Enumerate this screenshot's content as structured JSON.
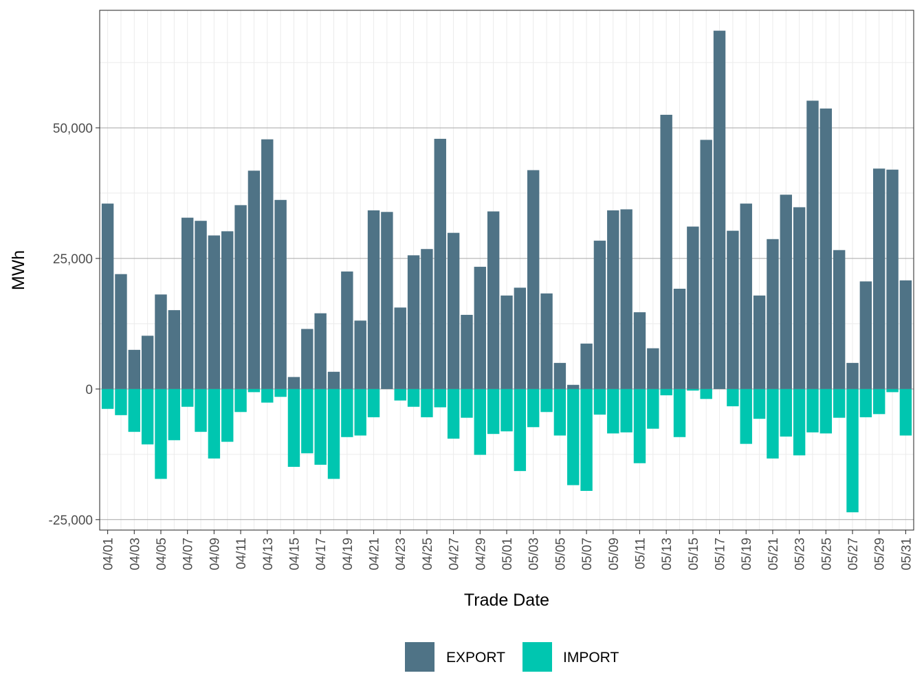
{
  "colors": {
    "export": "#4F7386",
    "import": "#00C6B0",
    "grid_major": "#a6a6a6",
    "grid_minor": "#ebebeb",
    "panel_border": "#333333"
  },
  "chart_data": {
    "type": "bar",
    "xlabel": "Trade Date",
    "ylabel": "MWh",
    "ylim": [
      -27000,
      72500
    ],
    "y_ticks": [
      -25000,
      0,
      25000,
      50000
    ],
    "y_tick_labels": [
      "-25,000",
      "0",
      "25,000",
      "50,000"
    ],
    "legend": {
      "position": "bottom",
      "entries": [
        "EXPORT",
        "IMPORT"
      ]
    },
    "grid": true,
    "categories": [
      "04/01",
      "04/02",
      "04/03",
      "04/04",
      "04/05",
      "04/06",
      "04/07",
      "04/08",
      "04/09",
      "04/10",
      "04/11",
      "04/12",
      "04/13",
      "04/14",
      "04/15",
      "04/16",
      "04/17",
      "04/18",
      "04/19",
      "04/20",
      "04/21",
      "04/22",
      "04/23",
      "04/24",
      "04/25",
      "04/26",
      "04/27",
      "04/28",
      "04/29",
      "04/30",
      "05/01",
      "05/02",
      "05/03",
      "05/04",
      "05/05",
      "05/06",
      "05/07",
      "05/08",
      "05/09",
      "05/10",
      "05/11",
      "05/12",
      "05/13",
      "05/14",
      "05/15",
      "05/16",
      "05/17",
      "05/18",
      "05/19",
      "05/20",
      "05/21",
      "05/22",
      "05/23",
      "05/24",
      "05/25",
      "05/26",
      "05/27",
      "05/28",
      "05/29",
      "05/30",
      "05/31"
    ],
    "x_tick_labels": [
      "04/01",
      "04/03",
      "04/05",
      "04/07",
      "04/09",
      "04/11",
      "04/13",
      "04/15",
      "04/17",
      "04/19",
      "04/21",
      "04/23",
      "04/25",
      "04/27",
      "04/29",
      "05/01",
      "05/03",
      "05/05",
      "05/07",
      "05/09",
      "05/11",
      "05/13",
      "05/15",
      "05/17",
      "05/19",
      "05/21",
      "05/23",
      "05/25",
      "05/27",
      "05/29",
      "05/31"
    ],
    "series": [
      {
        "name": "EXPORT",
        "values": [
          35500,
          22000,
          7500,
          10200,
          18100,
          15100,
          32800,
          32200,
          29400,
          30200,
          35200,
          41800,
          47800,
          36200,
          2300,
          11500,
          14500,
          3300,
          22500,
          13100,
          34200,
          33900,
          15600,
          25600,
          26800,
          47900,
          29900,
          14200,
          23400,
          34000,
          17900,
          19400,
          41900,
          18300,
          5000,
          800,
          8700,
          28400,
          34200,
          34400,
          14700,
          7800,
          52500,
          19200,
          31100,
          47700,
          68600,
          30300,
          35500,
          17900,
          28700,
          37200,
          34800,
          55200,
          53700,
          26600,
          5000,
          20600,
          42200,
          42000,
          20800
        ]
      },
      {
        "name": "IMPORT",
        "values": [
          -3800,
          -5000,
          -8200,
          -10600,
          -17200,
          -9800,
          -3400,
          -8200,
          -13300,
          -10100,
          -4400,
          -600,
          -2600,
          -1500,
          -14900,
          -12300,
          -14500,
          -17200,
          -9200,
          -8900,
          -5400,
          0,
          -2200,
          -3400,
          -5400,
          -3500,
          -9500,
          -5500,
          -12600,
          -8600,
          -8100,
          -15700,
          -7300,
          -4400,
          -8900,
          -18400,
          -19500,
          -4900,
          -8500,
          -8300,
          -14200,
          -7600,
          -1200,
          -9200,
          -300,
          -1900,
          0,
          -3300,
          -10500,
          -5700,
          -13300,
          -9100,
          -12700,
          -8300,
          -8500,
          -5500,
          -23600,
          -5400,
          -4800,
          -600,
          -8900
        ]
      }
    ]
  }
}
